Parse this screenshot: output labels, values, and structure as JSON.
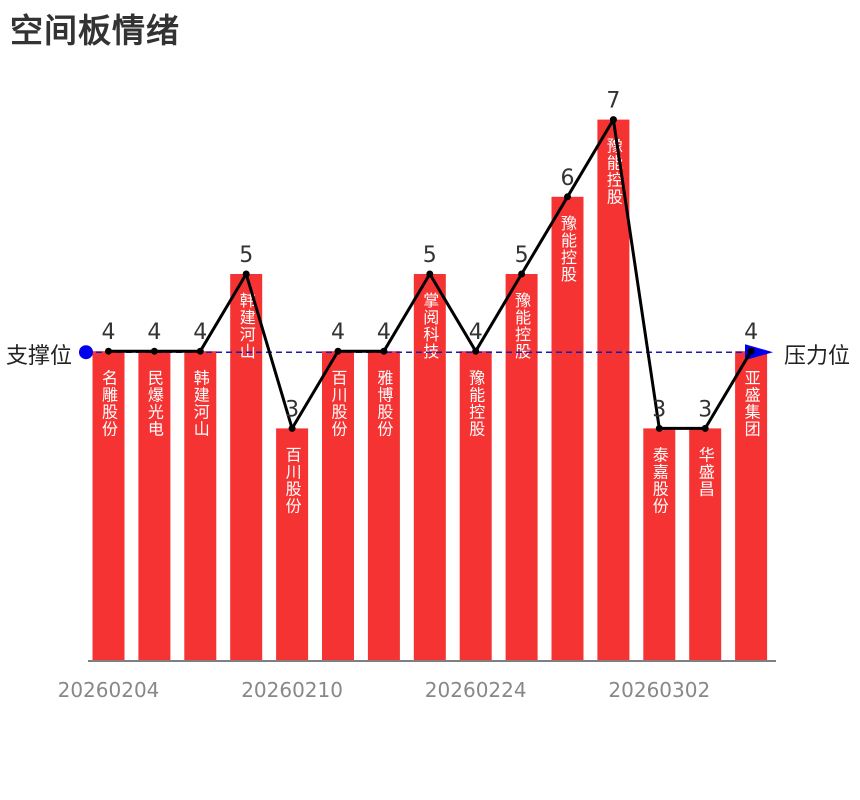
{
  "title": "空间板情绪",
  "support_label": "支撑位",
  "pressure_label": "压力位",
  "colors": {
    "bar": "#f53333",
    "line": "#000000",
    "reference_line": "#1a1ab0",
    "marker": "#0000ee",
    "value_label": "#333333",
    "bar_label": "#ffffff",
    "axis_label": "#888888",
    "axis": "#555555"
  },
  "chart_data": {
    "type": "bar",
    "title": "空间板情绪",
    "xlabel": "",
    "ylabel": "",
    "ylim": [
      0,
      8
    ],
    "grid": false,
    "legend": "none",
    "categories": [
      "名雕股份",
      "民爆光电",
      "韩建河山",
      "韩建河山",
      "百川股份",
      "百川股份",
      "雅博股份",
      "掌阅科技",
      "豫能控股",
      "豫能控股",
      "豫能控股",
      "豫能控股",
      "泰嘉股份",
      "华盛昌",
      "亚盛集团"
    ],
    "values": [
      4,
      4,
      4,
      5,
      3,
      4,
      4,
      5,
      4,
      5,
      6,
      7,
      3,
      3,
      4
    ],
    "x_tick_labels": [
      {
        "index": 0,
        "text": "20260204"
      },
      {
        "index": 4,
        "text": "20260210"
      },
      {
        "index": 8,
        "text": "20260224"
      },
      {
        "index": 12,
        "text": "20260302"
      }
    ],
    "reference_line": {
      "value": 4,
      "start_label": "支撑位",
      "end_label": "压力位"
    }
  }
}
